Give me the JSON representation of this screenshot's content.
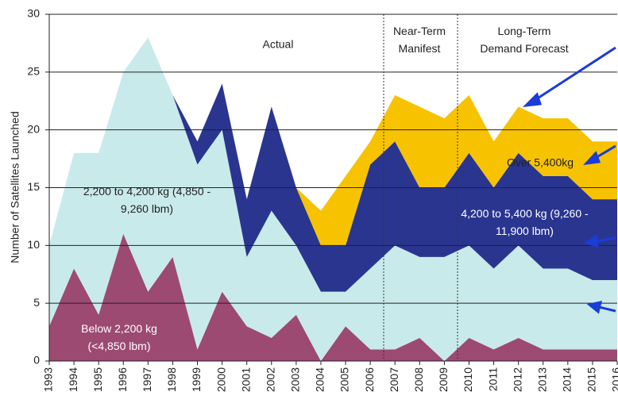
{
  "chart_data": {
    "type": "stacked-area",
    "y_label": "Number of Satellites Launched",
    "x": [
      1993,
      1994,
      1995,
      1996,
      1997,
      1998,
      1999,
      2000,
      2001,
      2002,
      2003,
      2004,
      2005,
      2006,
      2007,
      2008,
      2009,
      2010,
      2011,
      2012,
      2013,
      2014,
      2015,
      2016
    ],
    "xlim": [
      1993,
      2016
    ],
    "ylim": [
      0,
      30
    ],
    "yticks": [
      0,
      5,
      10,
      15,
      20,
      25,
      30
    ],
    "grid": true,
    "series": [
      {
        "name": "Below 2,200 kg (<4,850 lbm)",
        "color": "#9c4a72",
        "values": [
          3,
          8,
          4,
          11,
          6,
          9,
          1,
          6,
          3,
          2,
          4,
          0,
          3,
          1,
          1,
          2,
          0,
          2,
          1,
          2,
          1,
          1,
          1,
          1
        ]
      },
      {
        "name": "2,200 to 4,200 kg (4,850 - 9,260 lbm)",
        "color": "#c9eaea",
        "values": [
          7,
          10,
          14,
          14,
          22,
          14,
          16,
          14,
          6,
          11,
          6,
          6,
          3,
          7,
          9,
          7,
          9,
          8,
          7,
          8,
          7,
          7,
          6,
          6
        ]
      },
      {
        "name": "4,200 to 5,400 kg  (9,260 - 11,900 lbm)",
        "color": "#2a3590",
        "values": [
          0,
          0,
          0,
          0,
          0,
          0,
          2,
          4,
          5,
          9,
          5,
          4,
          4,
          9,
          9,
          6,
          6,
          8,
          7,
          8,
          8,
          8,
          7,
          7
        ]
      },
      {
        "name": "Over 5,400kg",
        "color": "#f7c200",
        "values": [
          0,
          0,
          0,
          0,
          0,
          0,
          0,
          0,
          0,
          0,
          0,
          3,
          6,
          2,
          4,
          7,
          6,
          5,
          4,
          4,
          5,
          5,
          5,
          5
        ]
      }
    ],
    "annotations": [
      "Actual",
      "Near-Term Manifest",
      "Long-Term Demand Forecast"
    ]
  }
}
